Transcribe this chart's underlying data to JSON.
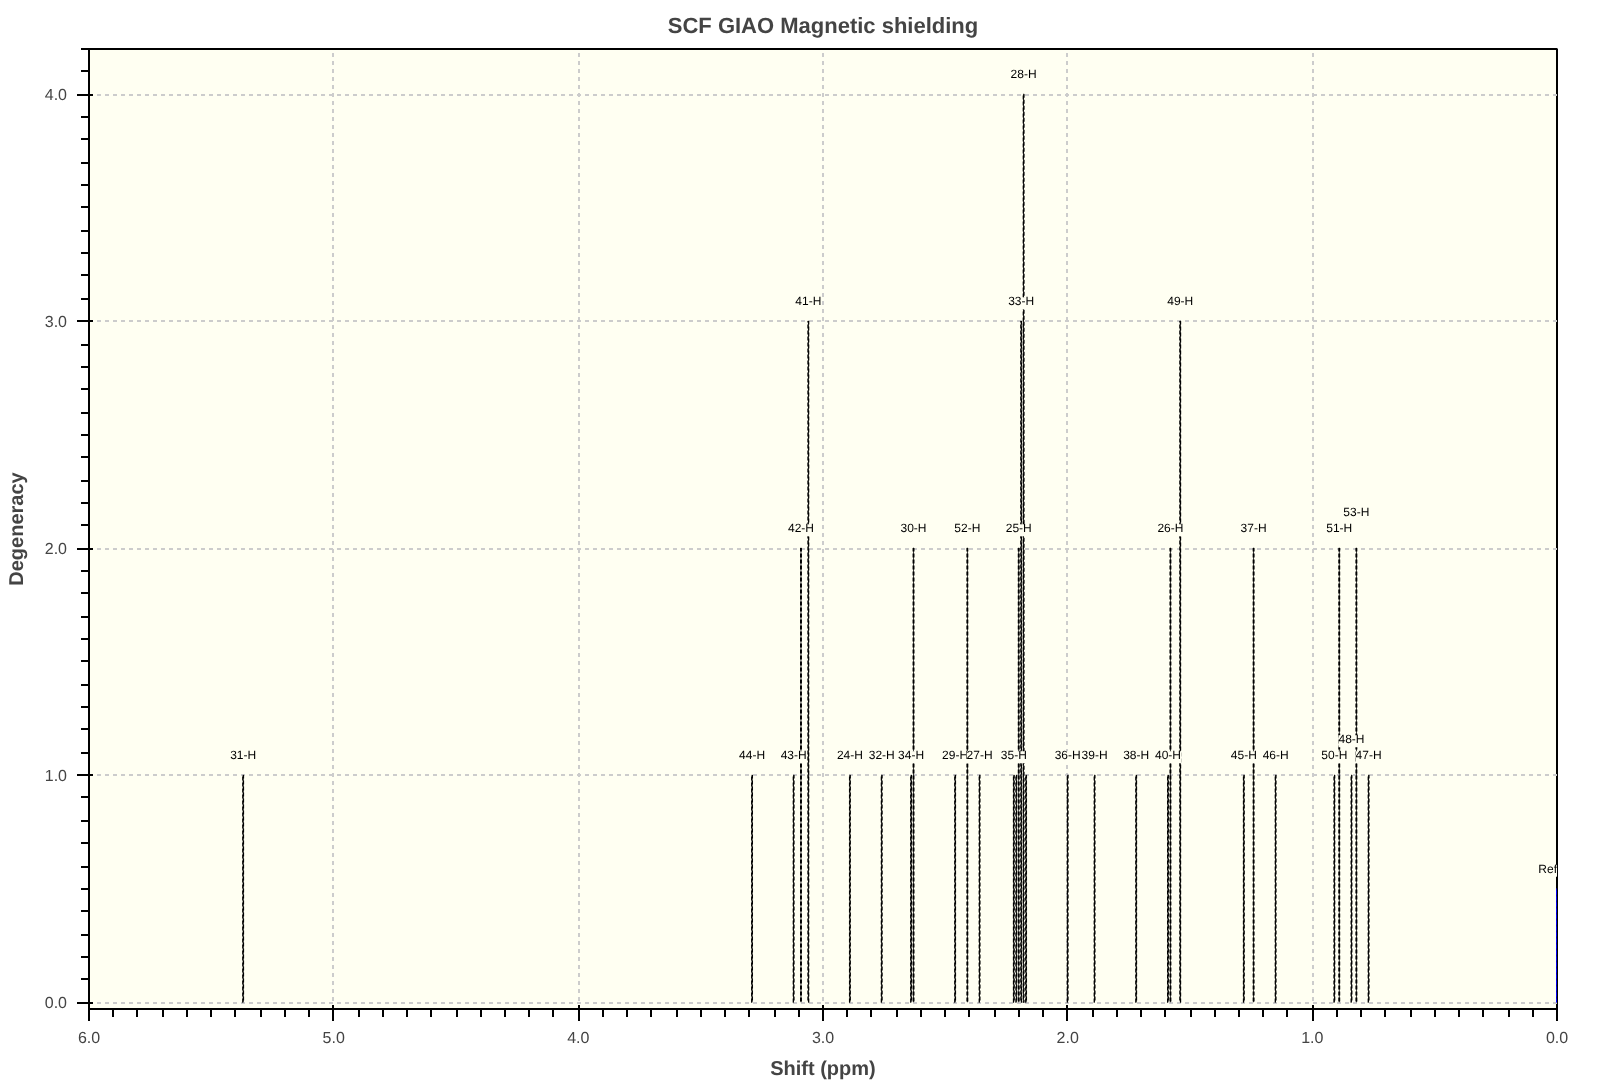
{
  "chart_data": {
    "type": "bar",
    "title": "SCF GIAO Magnetic shielding",
    "xlabel": "Shift (ppm)",
    "ylabel": "Degeneracy",
    "xlim": [
      6.0,
      0.0
    ],
    "ylim": [
      -0.03,
      4.2
    ],
    "xticks": [
      {
        "value": 6,
        "label": "6.0"
      },
      {
        "value": 5,
        "label": "5.0"
      },
      {
        "value": 4,
        "label": "4.0"
      },
      {
        "value": 3,
        "label": "3.0"
      },
      {
        "value": 2,
        "label": "2.0"
      },
      {
        "value": 1,
        "label": "1.0"
      },
      {
        "value": 0,
        "label": "0.0"
      }
    ],
    "yticks": [
      {
        "value": 0,
        "label": "0.0"
      },
      {
        "value": 1,
        "label": "1.0"
      },
      {
        "value": 2,
        "label": "2.0"
      },
      {
        "value": 3,
        "label": "3.0"
      },
      {
        "value": 4,
        "label": "4.0"
      }
    ],
    "grid": true,
    "line_style": "dashed",
    "series": [
      {
        "color": "#000000",
        "x": [
          5.37,
          3.29,
          3.12,
          3.09,
          3.06,
          2.89,
          2.76,
          2.64,
          2.63,
          2.46,
          2.41,
          2.36,
          2.22,
          2.21,
          2.2,
          2.19,
          2.18,
          2.17,
          2.0,
          1.89,
          1.72,
          1.59,
          1.58,
          1.54,
          1.28,
          1.24,
          1.15,
          0.91,
          0.89,
          0.84,
          0.82,
          0.77
        ],
        "values": [
          1,
          1,
          1,
          2,
          3,
          1,
          1,
          1,
          2,
          1,
          2,
          1,
          1,
          1,
          2,
          3,
          4,
          1,
          1,
          1,
          1,
          1,
          2,
          3,
          1,
          2,
          1,
          1,
          2,
          1,
          2,
          1
        ]
      },
      {
        "color": "#0000ff",
        "x": [
          0.0
        ],
        "values": [
          0.5
        ]
      }
    ],
    "annotations": [
      {
        "text": "31-H",
        "x": 5.37,
        "y": 1
      },
      {
        "text": "44-H",
        "x": 3.29,
        "y": 1
      },
      {
        "text": "43-H",
        "x": 3.12,
        "y": 1
      },
      {
        "text": "42-H",
        "x": 3.09,
        "y": 2
      },
      {
        "text": "41-H",
        "x": 3.06,
        "y": 3
      },
      {
        "text": "24-H",
        "x": 2.89,
        "y": 1
      },
      {
        "text": "32-H",
        "x": 2.76,
        "y": 1
      },
      {
        "text": "34-H",
        "x": 2.64,
        "y": 1
      },
      {
        "text": "30-H",
        "x": 2.63,
        "y": 2
      },
      {
        "text": "29-H",
        "x": 2.46,
        "y": 1
      },
      {
        "text": "52-H",
        "x": 2.41,
        "y": 2
      },
      {
        "text": "27-H",
        "x": 2.36,
        "y": 1
      },
      {
        "text": "35-H",
        "x": 2.22,
        "y": 1
      },
      {
        "text": "25-H",
        "x": 2.2,
        "y": 2
      },
      {
        "text": "33-H",
        "x": 2.19,
        "y": 3
      },
      {
        "text": "28-H",
        "x": 2.18,
        "y": 4
      },
      {
        "text": "36-H",
        "x": 2.0,
        "y": 1
      },
      {
        "text": "39-H",
        "x": 1.89,
        "y": 1
      },
      {
        "text": "38-H",
        "x": 1.72,
        "y": 1
      },
      {
        "text": "40-H",
        "x": 1.59,
        "y": 1
      },
      {
        "text": "26-H",
        "x": 1.58,
        "y": 2
      },
      {
        "text": "49-H",
        "x": 1.54,
        "y": 3
      },
      {
        "text": "45-H",
        "x": 1.28,
        "y": 1
      },
      {
        "text": "37-H",
        "x": 1.24,
        "y": 2
      },
      {
        "text": "46-H",
        "x": 1.15,
        "y": 1
      },
      {
        "text": "50-H",
        "x": 0.91,
        "y": 1
      },
      {
        "text": "51-H",
        "x": 0.89,
        "y": 2
      },
      {
        "text": "48-H",
        "x": 0.84,
        "y": 1
      },
      {
        "text": "53-H",
        "x": 0.82,
        "y": 2
      },
      {
        "text": "47-H",
        "x": 0.77,
        "y": 1
      },
      {
        "text": "Ref",
        "x": 0.0,
        "y": 0.5
      }
    ]
  }
}
